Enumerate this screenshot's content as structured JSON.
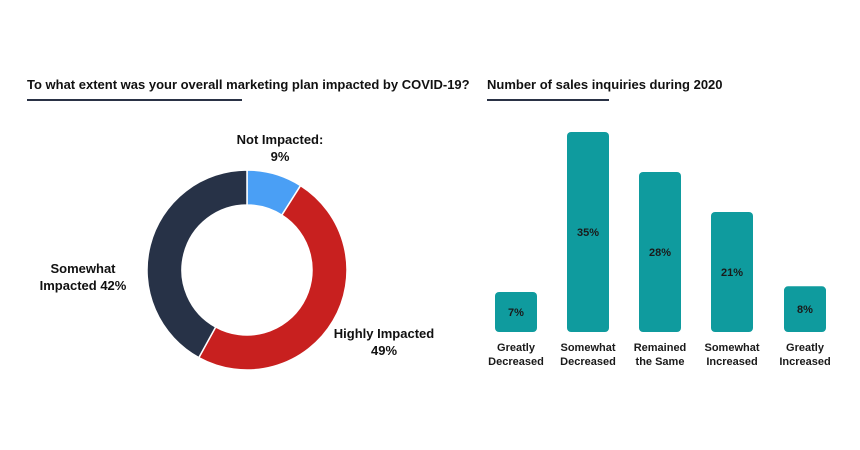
{
  "chart_data": [
    {
      "type": "pie",
      "title": "To what extent was your overall marketing plan impacted by COVID-19?",
      "categories": [
        "Not Impacted:",
        "Highly Impacted",
        "Somewhat Impacted"
      ],
      "values": [
        9,
        49,
        42
      ],
      "value_labels": [
        "9%",
        "49%",
        "42%"
      ],
      "colors": [
        "#4a9ff5",
        "#c8201f",
        "#273247"
      ],
      "label_lines": [
        [
          "Not Impacted:",
          "9%"
        ],
        [
          "Highly Impacted",
          "49%"
        ],
        [
          "Somewhat",
          "Impacted 42%"
        ]
      ],
      "legend": "none"
    },
    {
      "type": "bar",
      "title": "Number of sales inquiries during 2020",
      "categories": [
        "Greatly Decreased",
        "Somewhat Decreased",
        "Remained the Same",
        "Somewhat Increased",
        "Greatly Increased"
      ],
      "category_lines": [
        [
          "Greatly",
          "Decreased"
        ],
        [
          "Somewhat",
          "Decreased"
        ],
        [
          "Remained",
          "the Same"
        ],
        [
          "Somewhat",
          "Increased"
        ],
        [
          "Greatly",
          "Increased"
        ]
      ],
      "values": [
        7,
        35,
        28,
        21,
        8
      ],
      "value_labels": [
        "7%",
        "35%",
        "28%",
        "21%",
        "8%"
      ],
      "ylim": [
        0,
        35
      ],
      "color": "#0f9b9e",
      "grid": false,
      "xlabel": "",
      "ylabel": ""
    }
  ]
}
